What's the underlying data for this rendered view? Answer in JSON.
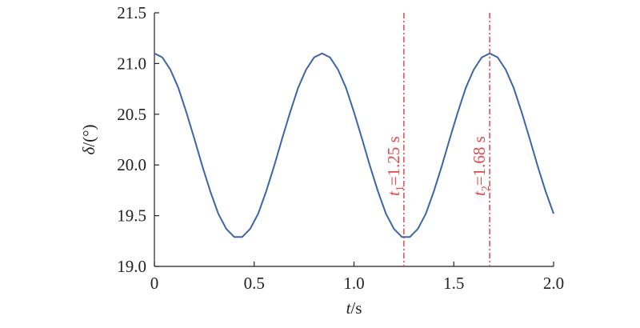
{
  "chart_data": {
    "type": "line",
    "x_label": [
      "t",
      "/s"
    ],
    "y_label": [
      "δ",
      "/(°)"
    ],
    "x": [
      0,
      0.04,
      0.08,
      0.12,
      0.16,
      0.2,
      0.24,
      0.28,
      0.32,
      0.36,
      0.4,
      0.44,
      0.48,
      0.52,
      0.56,
      0.6,
      0.64,
      0.68,
      0.72,
      0.76,
      0.8,
      0.84,
      0.88,
      0.92,
      0.96,
      1.0,
      1.04,
      1.08,
      1.12,
      1.16,
      1.2,
      1.24,
      1.28,
      1.32,
      1.36,
      1.4,
      1.44,
      1.48,
      1.52,
      1.56,
      1.6,
      1.64,
      1.68,
      1.72,
      1.76,
      1.8,
      1.84,
      1.88,
      1.92,
      1.96,
      2.0
    ],
    "series": [
      {
        "color": "#3c64a8",
        "values": [
          21.1,
          21.06,
          20.94,
          20.76,
          20.52,
          20.26,
          19.99,
          19.74,
          19.52,
          19.37,
          19.29,
          19.29,
          19.37,
          19.52,
          19.74,
          19.99,
          20.26,
          20.52,
          20.76,
          20.94,
          21.06,
          21.1,
          21.06,
          20.94,
          20.76,
          20.52,
          20.26,
          19.99,
          19.74,
          19.52,
          19.37,
          19.29,
          19.29,
          19.37,
          19.52,
          19.74,
          19.99,
          20.26,
          20.52,
          20.76,
          20.94,
          21.06,
          21.1,
          21.06,
          20.94,
          20.76,
          20.52,
          20.26,
          19.99,
          19.74,
          19.52
        ]
      }
    ],
    "xlim": [
      0,
      2
    ],
    "ylim": [
      19,
      21.5
    ],
    "xticks": [
      0,
      0.5,
      {
        "value": 1,
        "label": "1.0"
      },
      1.5,
      {
        "value": 2,
        "label": "2.0"
      }
    ],
    "yticks": [
      {
        "value": 19,
        "label": "19.0"
      },
      19.5,
      {
        "value": 20,
        "label": "20.0"
      },
      20.5,
      {
        "value": 21,
        "label": "21.0"
      },
      21.5
    ],
    "annotations": [
      {
        "x": 1.25,
        "color": "#e2474b",
        "text": [
          "t",
          "1",
          "=1.25 s"
        ]
      },
      {
        "x": 1.68,
        "color": "#e2474b",
        "text": [
          "t",
          "2",
          "=1.68 s"
        ]
      }
    ]
  }
}
